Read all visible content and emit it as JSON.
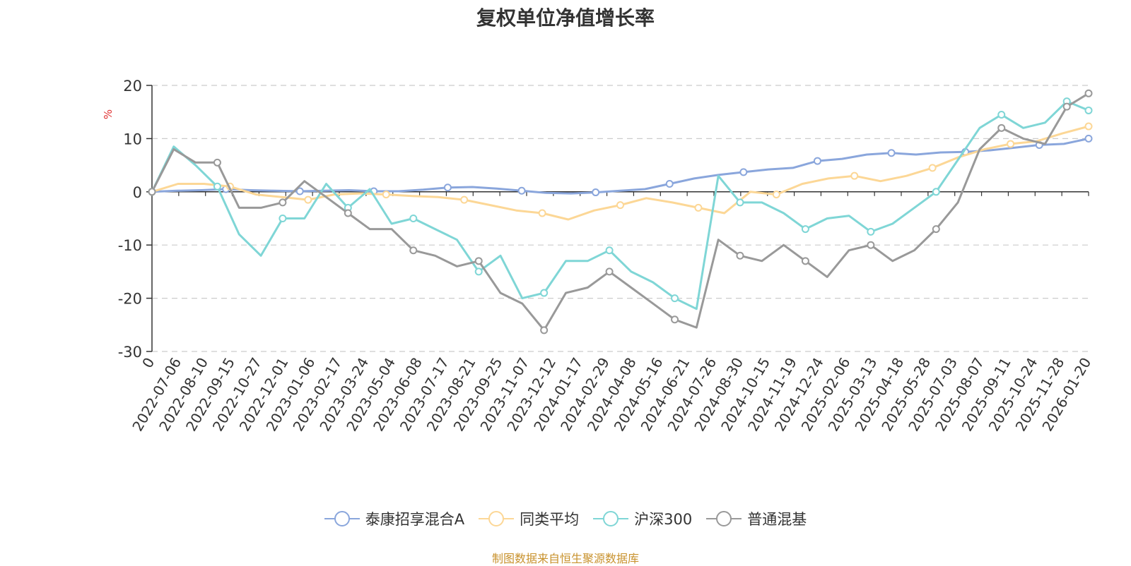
{
  "chart_data": {
    "type": "line",
    "title": "复权单位净值增长率",
    "ylabel": "%",
    "xlabel": "",
    "ylim": [
      -30,
      20
    ],
    "yticks": [
      20,
      10,
      0,
      -10,
      -20,
      -30
    ],
    "grid": true,
    "legend_position": "bottom-center",
    "x_tick_labels": [
      "0",
      "2022-07-06",
      "2022-08-10",
      "2022-09-15",
      "2022-10-27",
      "2022-12-01",
      "2023-01-06",
      "2023-02-17",
      "2023-03-24",
      "2023-05-04",
      "2023-06-08",
      "2023-07-17",
      "2023-08-21",
      "2023-09-25",
      "2023-11-07",
      "2023-12-12",
      "2024-01-17",
      "2024-02-29",
      "2024-04-08",
      "2024-05-16",
      "2024-06-21",
      "2024-07-26",
      "2024-08-30",
      "2024-10-15",
      "2024-11-19",
      "2024-12-24",
      "2025-02-06",
      "2025-03-13",
      "2025-04-18",
      "2025-05-28",
      "2025-07-03",
      "2025-08-07",
      "2025-09-11",
      "2025-10-24",
      "2025-11-28",
      "2026-01-20"
    ],
    "series": [
      {
        "name": "泰康招享混合A",
        "color": "#8aa6dc",
        "values": [
          0,
          0.2,
          0.3,
          0.5,
          0.3,
          0.2,
          0.1,
          0.2,
          0.3,
          0.1,
          0.1,
          0.4,
          0.8,
          0.9,
          0.6,
          0.2,
          -0.2,
          -0.3,
          -0.1,
          0.2,
          0.5,
          1.5,
          2.5,
          3.2,
          3.7,
          4.2,
          4.5,
          5.8,
          6.2,
          7.0,
          7.3,
          7.0,
          7.4,
          7.5,
          7.8,
          8.3,
          8.8,
          9.0,
          10.0
        ]
      },
      {
        "name": "同类平均",
        "color": "#fcd796",
        "values": [
          0,
          1.5,
          1.5,
          1.0,
          -0.5,
          -1.0,
          -1.5,
          -0.5,
          -0.3,
          -0.5,
          -0.8,
          -1.0,
          -1.5,
          -2.5,
          -3.5,
          -4.0,
          -5.2,
          -3.5,
          -2.5,
          -1.2,
          -2.0,
          -3.0,
          -4.0,
          0,
          -0.5,
          1.5,
          2.5,
          3.0,
          2.0,
          3.0,
          4.5,
          6.5,
          8.0,
          9.0,
          9.5,
          11.0,
          12.3
        ]
      },
      {
        "name": "沪深300",
        "color": "#7fd6d6",
        "values": [
          0,
          8.5,
          5.0,
          1.0,
          -8.0,
          -12.0,
          -5.0,
          -5.0,
          1.5,
          -3.0,
          0.5,
          -6.0,
          -5.0,
          -7.0,
          -9.0,
          -15.0,
          -12.0,
          -20.0,
          -19.0,
          -13.0,
          -13.0,
          -11.0,
          -15.0,
          -17.0,
          -20.0,
          -22.0,
          3.0,
          -2.0,
          -2.0,
          -4.0,
          -7.0,
          -5.0,
          -4.5,
          -7.5,
          -6.0,
          -3.0,
          0,
          6.0,
          12.0,
          14.5,
          12.0,
          13.0,
          17.0,
          15.3
        ]
      },
      {
        "name": "普通混基",
        "color": "#999999",
        "values": [
          0,
          8.0,
          5.5,
          5.5,
          -3.0,
          -3.0,
          -2.0,
          2.0,
          -1.0,
          -4.0,
          -7.0,
          -7.0,
          -11.0,
          -12.0,
          -14.0,
          -13.0,
          -19.0,
          -21.0,
          -26.0,
          -19.0,
          -18.0,
          -15.0,
          -18.0,
          -21.0,
          -24.0,
          -25.5,
          -9.0,
          -12.0,
          -13.0,
          -10.0,
          -13.0,
          -16.0,
          -11.0,
          -10.0,
          -13.0,
          -11.0,
          -7.0,
          -2.0,
          8.0,
          12.0,
          10.0,
          9.0,
          16.0,
          18.5
        ]
      }
    ]
  },
  "footer": "制图数据来自恒生聚源数据库"
}
